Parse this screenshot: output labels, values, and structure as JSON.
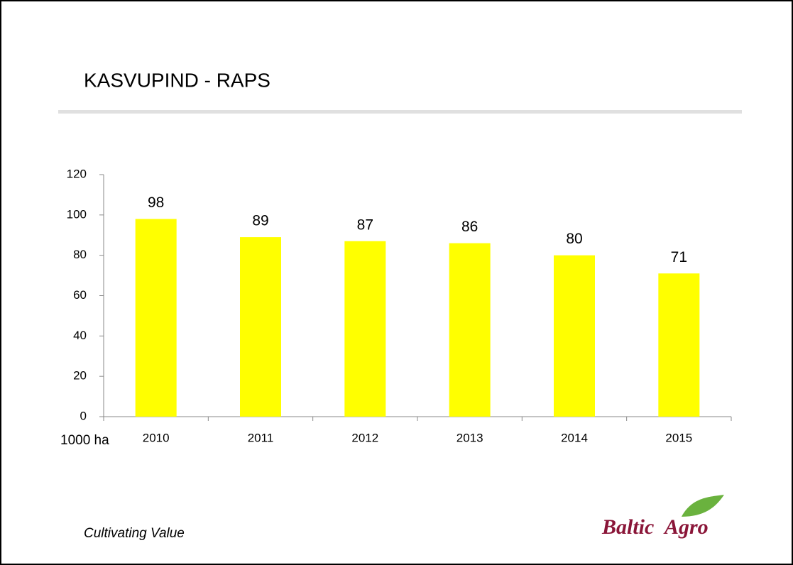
{
  "title": "KASVUPIND - RAPS",
  "footer": "Cultivating Value",
  "logo": {
    "first": "Baltic",
    "second": "Agro"
  },
  "chart_data": {
    "type": "bar",
    "y_label": "1000 ha",
    "categories": [
      "2010",
      "2011",
      "2012",
      "2013",
      "2014",
      "2015"
    ],
    "values": [
      98,
      89,
      87,
      86,
      80,
      71
    ],
    "color": "#ffff00",
    "ylim": [
      0,
      120
    ],
    "yticks": [
      0,
      20,
      40,
      60,
      80,
      100,
      120
    ],
    "grid": false,
    "data_labels": true
  }
}
